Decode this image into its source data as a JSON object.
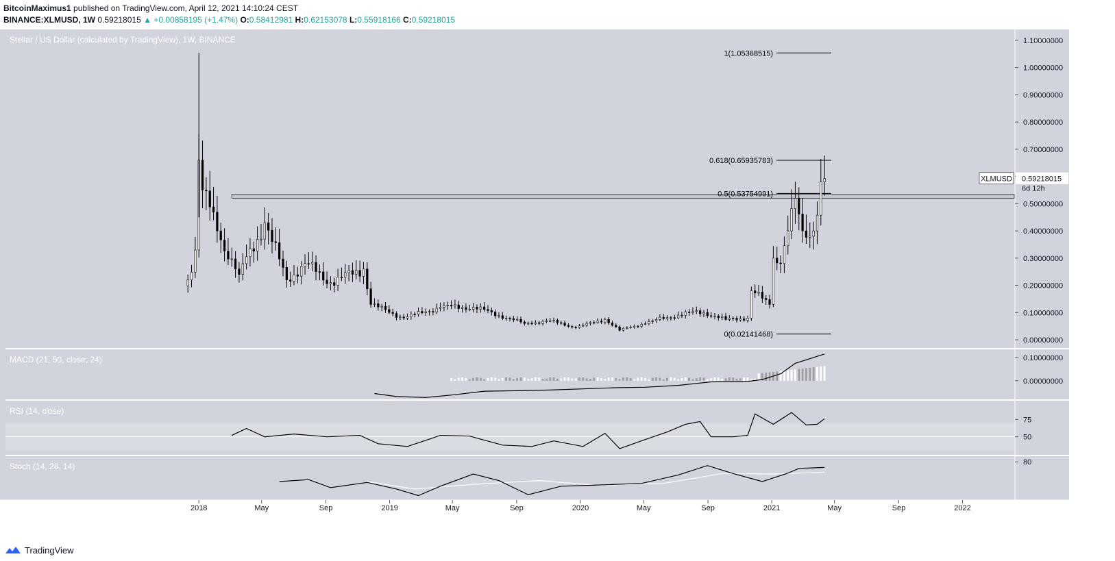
{
  "header": {
    "author": "BitcoinMaximus1",
    "published_text": "published on TradingView.com, April 12, 2021 14:10:24 CEST",
    "symbol": "BINANCE:XLMUSD, 1W",
    "price": "0.59218015",
    "change_arrow": "▲",
    "change": "+0.00858195 (+1.47%)",
    "o_label": "O:",
    "o_value": "0.58412981",
    "h_label": "H:",
    "h_value": "0.62153078",
    "l_label": "L:",
    "l_value": "0.55918166",
    "c_label": "C:",
    "c_value": "0.59218015"
  },
  "footer": {
    "brand": "TradingView"
  },
  "colors": {
    "up": "#26a69a",
    "panel_bg": "#d1d4dc",
    "candle": "#000000",
    "background": "#ffffff"
  },
  "chart_data": {
    "type": "candlestick",
    "title": "Stellar / US Dollar (calculated by TradingView), 1W, BINANCE",
    "currency_label": "USD",
    "symbol_tag": "XLMUSD",
    "last_price_label": "0.59218015",
    "countdown": "6d 12h",
    "y_ticks": [
      "1.10000000",
      "1.00000000",
      "0.90000000",
      "0.80000000",
      "0.70000000",
      "0.60000000",
      "0.50000000",
      "0.40000000",
      "0.30000000",
      "0.20000000",
      "0.10000000",
      "0.00000000"
    ],
    "ylim": [
      -0.03,
      1.14
    ],
    "x_ticks": [
      "2018",
      "May",
      "Sep",
      "2019",
      "May",
      "Sep",
      "2020",
      "May",
      "Sep",
      "2021",
      "May",
      "Sep",
      "2022"
    ],
    "x_tick_dates": [
      "2018-01-01",
      "2018-05-01",
      "2018-09-01",
      "2019-01-01",
      "2019-05-01",
      "2019-09-01",
      "2020-01-01",
      "2020-05-01",
      "2020-09-01",
      "2021-01-01",
      "2021-05-01",
      "2021-09-01",
      "2022-01-01"
    ],
    "x_range": [
      "2016-12-27",
      "2022-04-10"
    ],
    "fib_levels": [
      {
        "label": "1(1.05368515)",
        "value": 1.05368515
      },
      {
        "label": "0.618(0.65935783)",
        "value": 0.65935783
      },
      {
        "label": "0.5(0.53754991)",
        "value": 0.53754991
      },
      {
        "label": "0(0.02141468)",
        "value": 0.02141468
      }
    ],
    "resistance_zone": {
      "from_date": "2018-03-05",
      "low": 0.52,
      "high": 0.535
    },
    "price_anchors": [
      {
        "date": "2017-12-11",
        "close": 0.22
      },
      {
        "date": "2017-12-25",
        "close": 0.33
      },
      {
        "date": "2018-01-01",
        "close": 0.66
      },
      {
        "date": "2018-01-08",
        "close": 0.55
      },
      {
        "date": "2018-02-05",
        "close": 0.4
      },
      {
        "date": "2018-03-19",
        "close": 0.24
      },
      {
        "date": "2018-05-07",
        "close": 0.43
      },
      {
        "date": "2018-06-18",
        "close": 0.22
      },
      {
        "date": "2018-07-23",
        "close": 0.28
      },
      {
        "date": "2018-09-10",
        "close": 0.21
      },
      {
        "date": "2018-11-12",
        "close": 0.26
      },
      {
        "date": "2018-11-26",
        "close": 0.13
      },
      {
        "date": "2019-01-28",
        "close": 0.08
      },
      {
        "date": "2019-04-08",
        "close": 0.12
      },
      {
        "date": "2019-06-10",
        "close": 0.12
      },
      {
        "date": "2019-09-16",
        "close": 0.06
      },
      {
        "date": "2019-11-04",
        "close": 0.07
      },
      {
        "date": "2019-12-23",
        "close": 0.045
      },
      {
        "date": "2020-02-17",
        "close": 0.075
      },
      {
        "date": "2020-03-16",
        "close": 0.035
      },
      {
        "date": "2020-05-18",
        "close": 0.07
      },
      {
        "date": "2020-07-27",
        "close": 0.1
      },
      {
        "date": "2020-08-24",
        "close": 0.1
      },
      {
        "date": "2020-10-05",
        "close": 0.075
      },
      {
        "date": "2020-11-16",
        "close": 0.08
      },
      {
        "date": "2020-11-23",
        "close": 0.18
      },
      {
        "date": "2020-12-28",
        "close": 0.13
      },
      {
        "date": "2021-01-04",
        "close": 0.3
      },
      {
        "date": "2021-01-18",
        "close": 0.28
      },
      {
        "date": "2021-02-01",
        "close": 0.4
      },
      {
        "date": "2021-02-15",
        "close": 0.52
      },
      {
        "date": "2021-03-01",
        "close": 0.4
      },
      {
        "date": "2021-03-22",
        "close": 0.4
      },
      {
        "date": "2021-04-05",
        "close": 0.58
      },
      {
        "date": "2021-04-12",
        "close": 0.59218015
      }
    ],
    "indicators": [
      {
        "name": "MACD (21, 50, close, 24)",
        "y_ticks": [
          "0.10000000",
          "0.00000000"
        ],
        "ylim": [
          -0.08,
          0.135
        ],
        "line": [
          {
            "date": "2018-12-03",
            "v": -0.055
          },
          {
            "date": "2019-01-14",
            "v": -0.068
          },
          {
            "date": "2019-03-11",
            "v": -0.072
          },
          {
            "date": "2019-05-06",
            "v": -0.06
          },
          {
            "date": "2019-07-01",
            "v": -0.045
          },
          {
            "date": "2019-09-02",
            "v": -0.043
          },
          {
            "date": "2019-11-04",
            "v": -0.04
          },
          {
            "date": "2020-01-06",
            "v": -0.035
          },
          {
            "date": "2020-03-09",
            "v": -0.03
          },
          {
            "date": "2020-05-04",
            "v": -0.028
          },
          {
            "date": "2020-07-06",
            "v": -0.02
          },
          {
            "date": "2020-09-07",
            "v": -0.005
          },
          {
            "date": "2020-11-16",
            "v": -0.003
          },
          {
            "date": "2020-12-14",
            "v": 0.005
          },
          {
            "date": "2021-01-18",
            "v": 0.03
          },
          {
            "date": "2021-02-15",
            "v": 0.075
          },
          {
            "date": "2021-03-15",
            "v": 0.095
          },
          {
            "date": "2021-04-12",
            "v": 0.115
          }
        ]
      },
      {
        "name": "RSI (14, close)",
        "y_ticks": [
          "75",
          "50"
        ],
        "ylim": [
          24,
          102
        ],
        "band": [
          30,
          70
        ],
        "line": [
          {
            "date": "2018-03-05",
            "v": 52
          },
          {
            "date": "2018-04-02",
            "v": 62
          },
          {
            "date": "2018-05-07",
            "v": 50
          },
          {
            "date": "2018-07-02",
            "v": 54
          },
          {
            "date": "2018-09-03",
            "v": 50
          },
          {
            "date": "2018-11-05",
            "v": 52
          },
          {
            "date": "2018-12-10",
            "v": 40
          },
          {
            "date": "2019-02-04",
            "v": 36
          },
          {
            "date": "2019-04-08",
            "v": 52
          },
          {
            "date": "2019-06-03",
            "v": 51
          },
          {
            "date": "2019-08-05",
            "v": 38
          },
          {
            "date": "2019-09-30",
            "v": 36
          },
          {
            "date": "2019-11-11",
            "v": 44
          },
          {
            "date": "2020-01-06",
            "v": 36
          },
          {
            "date": "2020-02-17",
            "v": 55
          },
          {
            "date": "2020-03-16",
            "v": 33
          },
          {
            "date": "2020-05-04",
            "v": 46
          },
          {
            "date": "2020-06-15",
            "v": 57
          },
          {
            "date": "2020-07-20",
            "v": 68
          },
          {
            "date": "2020-08-17",
            "v": 72
          },
          {
            "date": "2020-09-07",
            "v": 50
          },
          {
            "date": "2020-10-19",
            "v": 50
          },
          {
            "date": "2020-11-16",
            "v": 52
          },
          {
            "date": "2020-11-30",
            "v": 83
          },
          {
            "date": "2021-01-04",
            "v": 68
          },
          {
            "date": "2021-02-08",
            "v": 85
          },
          {
            "date": "2021-03-08",
            "v": 67
          },
          {
            "date": "2021-03-29",
            "v": 68
          },
          {
            "date": "2021-04-12",
            "v": 76
          }
        ]
      },
      {
        "name": "Stoch (14, 28, 14)",
        "y_ticks": [
          "80"
        ],
        "ylim": [
          0,
          92
        ],
        "k_line": [
          {
            "date": "2018-06-04",
            "v": 38
          },
          {
            "date": "2018-07-30",
            "v": 42
          },
          {
            "date": "2018-09-10",
            "v": 25
          },
          {
            "date": "2018-11-19",
            "v": 36
          },
          {
            "date": "2019-01-14",
            "v": 22
          },
          {
            "date": "2019-02-25",
            "v": 8
          },
          {
            "date": "2019-04-08",
            "v": 28
          },
          {
            "date": "2019-06-10",
            "v": 54
          },
          {
            "date": "2019-07-29",
            "v": 40
          },
          {
            "date": "2019-09-23",
            "v": 10
          },
          {
            "date": "2019-11-25",
            "v": 28
          },
          {
            "date": "2020-01-20",
            "v": 30
          },
          {
            "date": "2020-04-27",
            "v": 34
          },
          {
            "date": "2020-07-06",
            "v": 52
          },
          {
            "date": "2020-08-31",
            "v": 72
          },
          {
            "date": "2020-10-19",
            "v": 55
          },
          {
            "date": "2020-12-14",
            "v": 38
          },
          {
            "date": "2021-02-01",
            "v": 56
          },
          {
            "date": "2021-02-22",
            "v": 66
          },
          {
            "date": "2021-04-12",
            "v": 68
          }
        ],
        "d_line": [
          {
            "date": "2018-11-19",
            "v": 38
          },
          {
            "date": "2019-02-18",
            "v": 22
          },
          {
            "date": "2019-06-10",
            "v": 32
          },
          {
            "date": "2019-10-14",
            "v": 40
          },
          {
            "date": "2020-02-03",
            "v": 30
          },
          {
            "date": "2020-06-08",
            "v": 34
          },
          {
            "date": "2020-09-28",
            "v": 55
          },
          {
            "date": "2021-01-04",
            "v": 54
          },
          {
            "date": "2021-04-12",
            "v": 58
          }
        ]
      }
    ]
  }
}
